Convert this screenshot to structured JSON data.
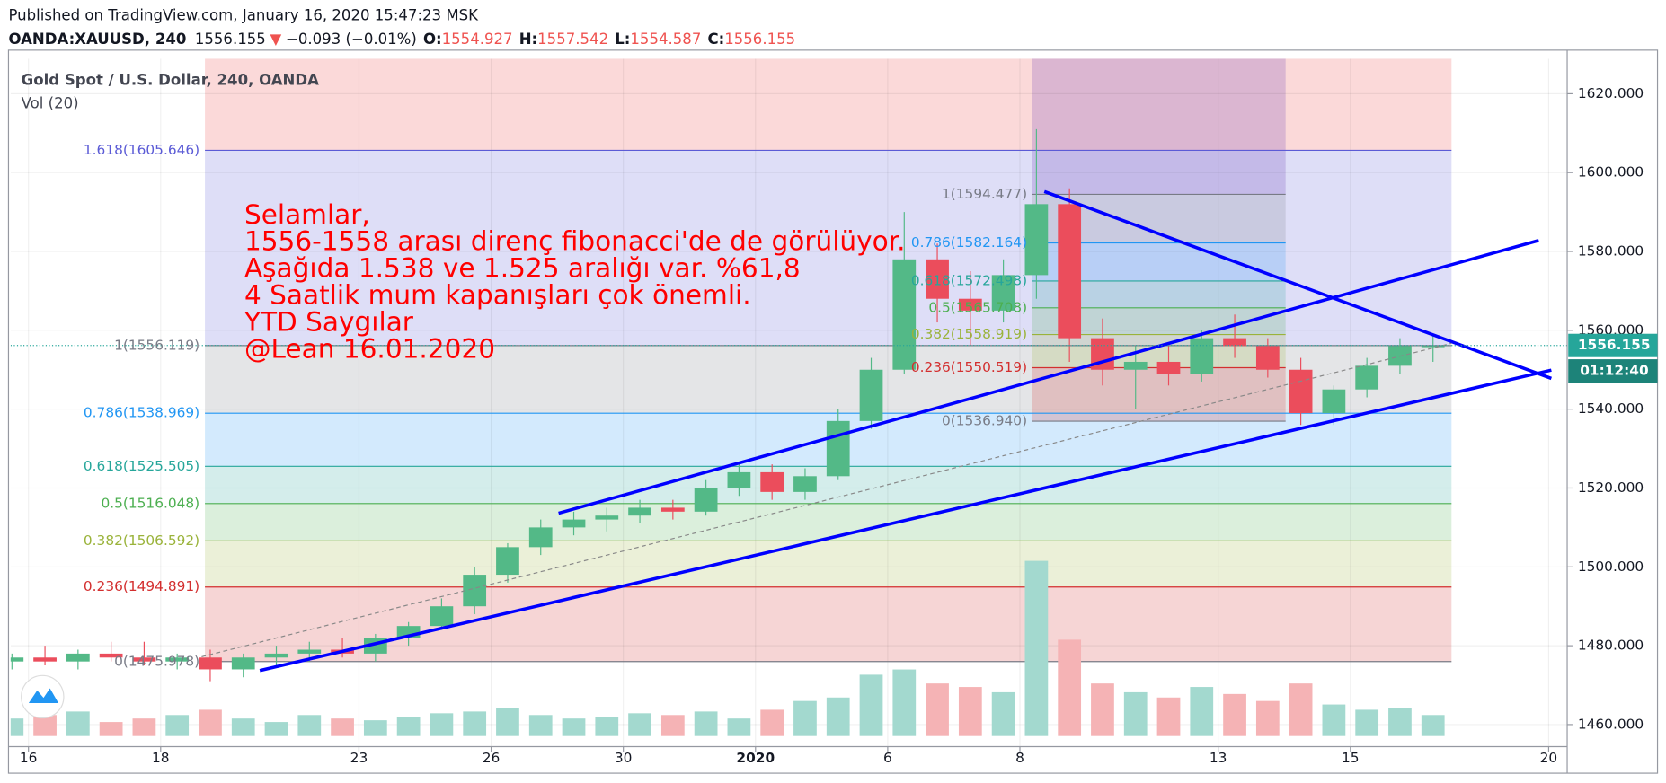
{
  "header": {
    "published": "Published on TradingView.com, January 16, 2020 15:47:23 MSK",
    "symbol": "OANDA:XAUUSD, 240",
    "last": "1556.155",
    "direction": "▼",
    "change": "−0.093 (−0.01%)",
    "ohlc": [
      {
        "label": "O:",
        "value": "1554.927"
      },
      {
        "label": "H:",
        "value": "1557.542"
      },
      {
        "label": "L:",
        "value": "1554.587"
      },
      {
        "label": "C:",
        "value": "1556.155"
      }
    ]
  },
  "chart_data": {
    "type": "candlestick",
    "title": "Gold Spot / U.S. Dollar, 240, OANDA",
    "indicator": "Vol (20)",
    "x": [
      -0.25,
      0.25,
      0.75,
      1.25,
      1.75,
      2.25,
      2.75,
      3.25,
      3.75,
      4.25,
      4.75,
      5.25,
      5.75,
      6.25,
      6.75,
      7.25,
      7.75,
      8.25,
      8.75,
      9.25,
      9.75,
      10.25,
      10.75,
      11.25,
      11.75,
      12.25,
      12.75,
      13.25,
      13.75,
      14.25,
      14.75,
      15.25,
      15.75,
      16.25,
      16.75,
      17.25,
      17.75,
      18.25,
      18.75,
      19.25,
      19.75,
      20.25,
      20.75,
      21.25
    ],
    "open": [
      1476,
      1477,
      1476,
      1478,
      1477,
      1476,
      1477,
      1474,
      1477,
      1478,
      1479,
      1478,
      1482,
      1485,
      1490,
      1498,
      1505,
      1510,
      1512,
      1513,
      1515,
      1514,
      1520,
      1524,
      1519,
      1523,
      1537,
      1550,
      1578,
      1568,
      1565,
      1574,
      1592,
      1558,
      1550,
      1552,
      1549,
      1558,
      1556,
      1550,
      1539,
      1545,
      1551,
      1556
    ],
    "high": [
      1478,
      1480,
      1479,
      1481,
      1481,
      1478,
      1479,
      1478,
      1480,
      1481,
      1482,
      1483,
      1486,
      1492,
      1500,
      1506,
      1512,
      1514,
      1515,
      1517,
      1517,
      1522,
      1526,
      1526,
      1525,
      1540,
      1553,
      1590,
      1582,
      1575,
      1578,
      1611,
      1596,
      1563,
      1556,
      1556,
      1560,
      1564,
      1558,
      1553,
      1546,
      1553,
      1558,
      1559
    ],
    "low": [
      1474,
      1475,
      1474,
      1476,
      1475,
      1474,
      1471,
      1472,
      1475,
      1476,
      1477,
      1476,
      1480,
      1484,
      1488,
      1496,
      1503,
      1508,
      1509,
      1511,
      1512,
      1513,
      1518,
      1517,
      1517,
      1522,
      1535,
      1549,
      1562,
      1556,
      1562,
      1568,
      1552,
      1546,
      1540,
      1546,
      1547,
      1553,
      1548,
      1536,
      1536,
      1543,
      1549,
      1552
    ],
    "close": [
      1477,
      1476,
      1478,
      1477,
      1476,
      1477,
      1474,
      1477,
      1478,
      1479,
      1478,
      1482,
      1485,
      1490,
      1498,
      1505,
      1510,
      1512,
      1513,
      1515,
      1514,
      1520,
      1524,
      1519,
      1523,
      1537,
      1550,
      1578,
      1568,
      1565,
      1574,
      1592,
      1558,
      1550,
      1552,
      1549,
      1558,
      1556,
      1550,
      1539,
      1545,
      1551,
      1556,
      1556
    ],
    "volume": [
      10,
      12,
      14,
      8,
      10,
      12,
      15,
      10,
      8,
      12,
      10,
      9,
      11,
      13,
      14,
      16,
      12,
      10,
      11,
      13,
      12,
      14,
      10,
      15,
      20,
      22,
      35,
      38,
      30,
      28,
      25,
      100,
      55,
      30,
      25,
      22,
      28,
      24,
      20,
      30,
      18,
      15,
      16,
      12
    ],
    "up_color": "#53b987",
    "down_color": "#eb4d5c",
    "volume_up_color": "#a3d9cf",
    "volume_down_color": "#f5b3b5",
    "xlim": [
      -0.27,
      23.28
    ],
    "xticks": [
      {
        "value": 0,
        "label": "16"
      },
      {
        "value": 2,
        "label": "18"
      },
      {
        "value": 5,
        "label": "23"
      },
      {
        "value": 7,
        "label": "26"
      },
      {
        "value": 9,
        "label": "30"
      },
      {
        "value": 11,
        "label": "2020"
      },
      {
        "value": 13,
        "label": "6"
      },
      {
        "value": 15,
        "label": "8"
      },
      {
        "value": 18,
        "label": "13"
      },
      {
        "value": 20,
        "label": "15"
      },
      {
        "value": 23,
        "label": "20"
      }
    ],
    "ylim": [
      1454.4,
      1628.9
    ],
    "yticks": [
      {
        "value": 1460,
        "label": "1460.000"
      },
      {
        "value": 1480,
        "label": "1480.000"
      },
      {
        "value": 1500,
        "label": "1500.000"
      },
      {
        "value": 1520,
        "label": "1520.000"
      },
      {
        "value": 1540,
        "label": "1540.000"
      },
      {
        "value": 1560,
        "label": "1560.000"
      },
      {
        "value": 1580,
        "label": "1580.000"
      },
      {
        "value": 1600,
        "label": "1600.000"
      },
      {
        "value": 1620,
        "label": "1620.000"
      }
    ],
    "grid": true,
    "last_price": 1556.155,
    "countdown": "01:12:40",
    "last_color": "#26a69a",
    "fibs": [
      {
        "x_range": [
          2.67,
          21.53
        ],
        "top_color": "#ef5350",
        "levels": [
          {
            "label": "1.618(1605.646)",
            "price": 1605.646,
            "color": "#5b5bd6"
          },
          {
            "label": "1(1556.119)",
            "price": 1556.119,
            "color": "#787b86"
          },
          {
            "label": "0.786(1538.969)",
            "price": 1538.969,
            "color": "#2196f3"
          },
          {
            "label": "0.618(1525.505)",
            "price": 1525.505,
            "color": "#26a69a"
          },
          {
            "label": "0.5(1516.048)",
            "price": 1516.048,
            "color": "#4caf50"
          },
          {
            "label": "0.382(1506.592)",
            "price": 1506.592,
            "color": "#9ab33a"
          },
          {
            "label": "0.236(1494.891)",
            "price": 1494.891,
            "color": "#d32f2f"
          },
          {
            "label": "0(1475.978)",
            "price": 1475.978,
            "color": "#787b86"
          }
        ]
      },
      {
        "x_range": [
          15.19,
          19.02
        ],
        "top_color": "#673ab7",
        "levels": [
          {
            "label": "1(1594.477)",
            "price": 1594.477,
            "color": "#787b86"
          },
          {
            "label": "0.786(1582.164)",
            "price": 1582.164,
            "color": "#2196f3"
          },
          {
            "label": "0.618(1572.498)",
            "price": 1572.498,
            "color": "#26a69a"
          },
          {
            "label": "0.5(1565.708)",
            "price": 1565.708,
            "color": "#4caf50"
          },
          {
            "label": "0.382(1558.919)",
            "price": 1558.919,
            "color": "#9ab33a"
          },
          {
            "label": "0.236(1550.519)",
            "price": 1550.519,
            "color": "#d32f2f"
          },
          {
            "label": "0(1536.940)",
            "price": 1536.94,
            "color": "#787b86"
          }
        ]
      }
    ],
    "trendlines": [
      {
        "x": [
          8.02,
          22.85
        ],
        "y": [
          1513.6,
          1582.8
        ],
        "color": "#0000ff",
        "dashed": false
      },
      {
        "x": [
          3.5,
          23.04
        ],
        "y": [
          1473.7,
          1549.9
        ],
        "color": "#0000ff",
        "dashed": false
      },
      {
        "x": [
          15.37,
          23.04
        ],
        "y": [
          1595.2,
          1547.8
        ],
        "color": "#0000ff",
        "dashed": false
      },
      {
        "x": [
          2.62,
          21.53
        ],
        "y": [
          1477.2,
          1556.7
        ],
        "color": "#888888",
        "dashed": true
      }
    ],
    "annotation": [
      "Selamlar,",
      "1556-1558 arası direnç fibonacci'de de görülüyor.",
      "Aşağıda 1.538 ve 1.525 aralığı var. %61,8",
      "4 Saatlik mum kapanışları çok önemli.",
      "YTD Saygılar",
      "@Lean 16.01.2020"
    ]
  }
}
